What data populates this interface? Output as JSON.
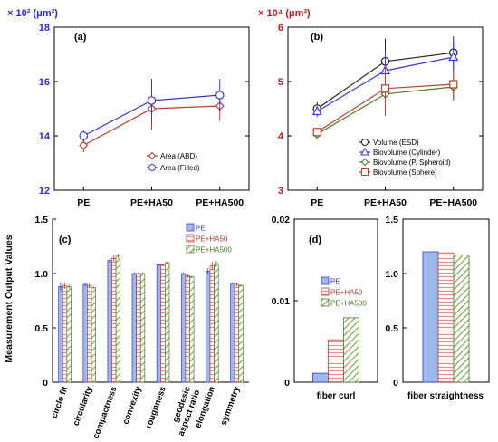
{
  "colors": {
    "blue": "#3a3acf",
    "red": "#b5402f",
    "green": "#4a7a2a",
    "black": "#222222",
    "blue_fill": "#9db8ea",
    "red_fill": "#f6c4c4",
    "green_fill": "#c8dca6",
    "axis_blue": "#2b2bd3",
    "axis_red": "#b22222"
  },
  "chart_data": [
    {
      "id": "a",
      "panel_label": "(a)",
      "type": "line",
      "unit_label": "× 10² (μm²)",
      "categories": [
        "PE",
        "PE+HA50",
        "PE+HA500"
      ],
      "ylim": [
        12,
        18
      ],
      "yticks": [
        "12",
        "14",
        "16",
        "18"
      ],
      "series": [
        {
          "name": "Area (ABD)",
          "values": [
            13.65,
            15.0,
            15.1
          ],
          "errors": [
            0.25,
            0.8,
            0.55
          ]
        },
        {
          "name": "Area (Filled)",
          "values": [
            14.0,
            15.3,
            15.5
          ],
          "errors": [
            0.2,
            0.8,
            0.6
          ]
        }
      ]
    },
    {
      "id": "b",
      "panel_label": "(b)",
      "type": "line",
      "unit_label": "× 10⁴ (μm³)",
      "categories": [
        "PE",
        "PE+HA50",
        "PE+HA500"
      ],
      "ylim": [
        3,
        6
      ],
      "yticks": [
        "3",
        "4",
        "5",
        "6"
      ],
      "series": [
        {
          "name": "Volume (ESD)",
          "values": [
            4.5,
            5.37,
            5.53
          ],
          "errors": [
            0.12,
            0.42,
            0.3
          ]
        },
        {
          "name": "Biovolume (Cylinder)",
          "values": [
            4.45,
            5.2,
            5.45
          ],
          "errors": [
            0.1,
            0.38,
            0.28
          ]
        },
        {
          "name": "Biovolume (P. Spheroid)",
          "values": [
            4.03,
            4.77,
            4.9
          ],
          "errors": [
            0.08,
            0.4,
            0.25
          ]
        },
        {
          "name": "Biovolume (Sphere)",
          "values": [
            4.07,
            4.87,
            4.95
          ],
          "errors": [
            0.08,
            0.42,
            0.27
          ]
        }
      ]
    },
    {
      "id": "c",
      "panel_label": "(c)",
      "type": "bar",
      "ylabel": "Measurement Output Values",
      "categories": [
        "circle fit",
        "circularity",
        "compactness",
        "convexity",
        "roughness",
        "geodesic aspect ratio",
        "elongation",
        "symmetry"
      ],
      "category_lines": [
        [
          "circle fit"
        ],
        [
          "circularity"
        ],
        [
          "compactness"
        ],
        [
          "convexity"
        ],
        [
          "roughness"
        ],
        [
          "geodesic",
          "aspect ratio"
        ],
        [
          "elongation"
        ],
        [
          "symmetry"
        ]
      ],
      "ylim": [
        0,
        1.5
      ],
      "yticks": [
        "0",
        "0.5",
        "1.0",
        "1.5"
      ],
      "series": [
        {
          "name": "PE",
          "values": [
            0.88,
            0.9,
            1.12,
            1.0,
            1.08,
            1.0,
            1.02,
            0.91
          ]
        },
        {
          "name": "PE+HA50",
          "values": [
            0.89,
            0.89,
            1.14,
            1.0,
            1.08,
            0.98,
            1.07,
            0.9
          ]
        },
        {
          "name": "PE+HA500",
          "values": [
            0.88,
            0.87,
            1.16,
            1.0,
            1.1,
            0.97,
            1.09,
            0.89
          ]
        }
      ],
      "errors": [
        [
          0.04,
          0.02,
          0.02,
          0.01,
          0.01,
          0.01,
          0.03,
          0.01
        ],
        [
          0.03,
          0.02,
          0.03,
          0.01,
          0.01,
          0.02,
          0.04,
          0.02
        ],
        [
          0.02,
          0.01,
          0.02,
          0.01,
          0.01,
          0.01,
          0.03,
          0.01
        ]
      ]
    },
    {
      "id": "d1",
      "panel_label": "(d)",
      "type": "bar",
      "xlabel": "fiber curl",
      "ylim": [
        0,
        0.02
      ],
      "yticks": [
        "0",
        "0.01",
        "0.02"
      ],
      "series": [
        {
          "name": "PE",
          "values": [
            0.0011
          ]
        },
        {
          "name": "PE+HA50",
          "values": [
            0.0052
          ]
        },
        {
          "name": "PE+HA500",
          "values": [
            0.0079
          ]
        }
      ]
    },
    {
      "id": "d2",
      "type": "bar",
      "xlabel": "fiber straightness",
      "ylim": [
        0,
        1.5
      ],
      "yticks": [
        "0",
        "0.5",
        "1.0",
        "1.5"
      ],
      "series": [
        {
          "name": "PE",
          "values": [
            1.2
          ]
        },
        {
          "name": "PE+HA50",
          "values": [
            1.19
          ]
        },
        {
          "name": "PE+HA500",
          "values": [
            1.17
          ]
        }
      ]
    }
  ]
}
